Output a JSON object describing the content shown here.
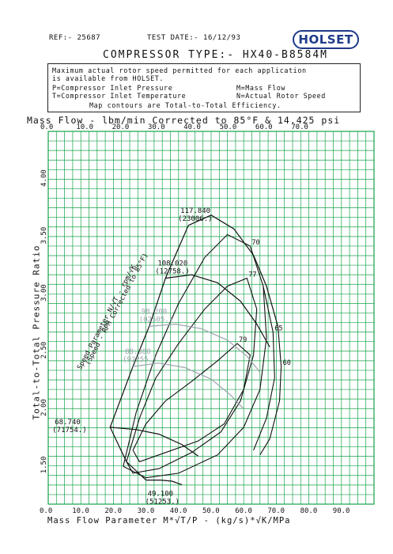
{
  "header": {
    "ref": "REF:- 25687",
    "test_date": "TEST DATE:- 16/12/93",
    "logo_text": "HOLSET",
    "compressor_type": "COMPRESSOR TYPE:- HX40-B8584M"
  },
  "info_box": {
    "line1": "Maximum actual rotor speed permitted for each application",
    "line2": "is available from HOLSET.",
    "p_def": "P=Compressor Inlet Pressure",
    "m_def": "M=Mass Flow",
    "t_def": "T=Compressor Inlet Temperature",
    "n_def": "N=Actual Rotor Speed",
    "line5": "Map contours are Total-to-Total Efficiency."
  },
  "colors": {
    "grid": "#16a34a",
    "ink": "#111111",
    "logo": "#1e3a8a",
    "grey_line": "#9ca3af"
  },
  "chart_data": {
    "type": "line",
    "title": "COMPRESSOR TYPE:- HX40-B8584M",
    "top_axis_label": "Mass Flow - lbm/min Corrected to 85°F & 14.425 psi",
    "top_ticks": [
      "0.0",
      "10.0",
      "20.0",
      "30.0",
      "40.0",
      "50.0",
      "60.0",
      "70.0"
    ],
    "top_xlim": [
      0,
      80
    ],
    "xlabel": "Mass Flow Parameter   M*√T/P   -   (kg/s)*√K/MPa",
    "x_ticks": [
      "0.0",
      "10.0",
      "20.0",
      "30.0",
      "40.0",
      "50.0",
      "60.0",
      "70.0",
      "80.0",
      "90.0"
    ],
    "xlim": [
      0,
      100
    ],
    "ylabel": "Total-to-Total Pressure Ratio",
    "y_ticks": [
      "1.50",
      "2.00",
      "2.50",
      "3.00",
      "3.50",
      "4.00"
    ],
    "ylim": [
      1.15,
      4.4
    ],
    "grid": true,
    "speed_parameter_label": "Speed Parameter  N/√T - rpm/√K",
    "speed_parameter_label2": "(Speed - RPM Corrected to 85°F)",
    "speed_lines": [
      {
        "name": "117.840",
        "sub": "(23006.)",
        "points": [
          [
            43.0,
            3.58
          ],
          [
            50.0,
            3.67
          ],
          [
            57.0,
            3.55
          ],
          [
            63.0,
            3.32
          ],
          [
            67.0,
            3.05
          ],
          [
            70.5,
            2.7
          ]
        ]
      },
      {
        "name": "108.020",
        "sub": "(12758.)",
        "points": [
          [
            36.0,
            3.12
          ],
          [
            44.0,
            3.15
          ],
          [
            52.0,
            3.08
          ],
          [
            59.0,
            2.92
          ],
          [
            64.0,
            2.72
          ],
          [
            68.0,
            2.52
          ]
        ]
      },
      {
        "name": "98.200",
        "sub": "(02505.)",
        "points": [
          [
            31.0,
            2.7
          ],
          [
            39.0,
            2.72
          ],
          [
            47.0,
            2.68
          ],
          [
            55.0,
            2.58
          ],
          [
            61.0,
            2.44
          ],
          [
            65.0,
            2.3
          ]
        ]
      },
      {
        "name": "88.380",
        "sub": "(92255.)",
        "points": [
          [
            26.0,
            2.35
          ],
          [
            34.0,
            2.38
          ],
          [
            42.0,
            2.34
          ],
          [
            50.0,
            2.24
          ],
          [
            56.0,
            2.1
          ],
          [
            60.0,
            1.98
          ]
        ]
      },
      {
        "name": "68.740",
        "sub": "(71754.)",
        "points": [
          [
            19.0,
            1.82
          ],
          [
            27.0,
            1.8
          ],
          [
            34.0,
            1.76
          ],
          [
            41.0,
            1.67
          ],
          [
            46.0,
            1.57
          ]
        ]
      },
      {
        "name": "49.100",
        "sub": "(51253.)",
        "points": [
          [
            30.0,
            1.36
          ],
          [
            34.5,
            1.36
          ],
          [
            38.0,
            1.35
          ],
          [
            41.0,
            1.32
          ]
        ]
      }
    ],
    "surge_line": [
      [
        30.0,
        1.36
      ],
      [
        24.0,
        1.52
      ],
      [
        19.0,
        1.82
      ],
      [
        26.0,
        2.35
      ],
      [
        31.0,
        2.7
      ],
      [
        36.0,
        3.12
      ],
      [
        43.0,
        3.58
      ]
    ],
    "efficiency_islands": [
      {
        "name": "79",
        "points": [
          [
            26,
            1.62
          ],
          [
            30,
            1.85
          ],
          [
            36,
            2.05
          ],
          [
            44,
            2.22
          ],
          [
            52,
            2.4
          ],
          [
            58,
            2.55
          ],
          [
            62,
            2.45
          ],
          [
            60,
            2.15
          ],
          [
            54,
            1.85
          ],
          [
            46,
            1.7
          ],
          [
            36,
            1.6
          ],
          [
            28,
            1.52
          ],
          [
            26,
            1.62
          ]
        ]
      },
      {
        "name": "77",
        "points": [
          [
            24,
            1.52
          ],
          [
            28,
            1.9
          ],
          [
            33,
            2.25
          ],
          [
            40,
            2.55
          ],
          [
            48,
            2.85
          ],
          [
            55,
            3.05
          ],
          [
            61,
            3.12
          ],
          [
            64,
            2.85
          ],
          [
            63,
            2.45
          ],
          [
            59,
            2.05
          ],
          [
            53,
            1.78
          ],
          [
            44,
            1.6
          ],
          [
            34,
            1.46
          ],
          [
            26,
            1.42
          ],
          [
            24,
            1.52
          ]
        ]
      },
      {
        "name": "70",
        "points": [
          [
            23,
            1.48
          ],
          [
            27,
            1.95
          ],
          [
            33,
            2.45
          ],
          [
            40,
            2.9
          ],
          [
            48,
            3.3
          ],
          [
            55,
            3.5
          ],
          [
            62,
            3.4
          ],
          [
            66,
            3.05
          ],
          [
            67,
            2.6
          ],
          [
            65,
            2.15
          ],
          [
            60,
            1.82
          ],
          [
            52,
            1.58
          ],
          [
            40,
            1.42
          ],
          [
            30,
            1.38
          ],
          [
            23,
            1.48
          ]
        ]
      },
      {
        "name": "65",
        "points": [
          [
            66,
            3.05
          ],
          [
            69,
            2.65
          ],
          [
            69.5,
            2.25
          ],
          [
            67,
            1.9
          ],
          [
            63,
            1.62
          ]
        ]
      },
      {
        "name": "60",
        "points": [
          [
            70.5,
            2.7
          ],
          [
            71.5,
            2.35
          ],
          [
            71,
            2.05
          ],
          [
            68,
            1.72
          ],
          [
            65,
            1.58
          ]
        ]
      }
    ],
    "speed_labels_grey": [
      "98.200",
      "88.380"
    ]
  }
}
